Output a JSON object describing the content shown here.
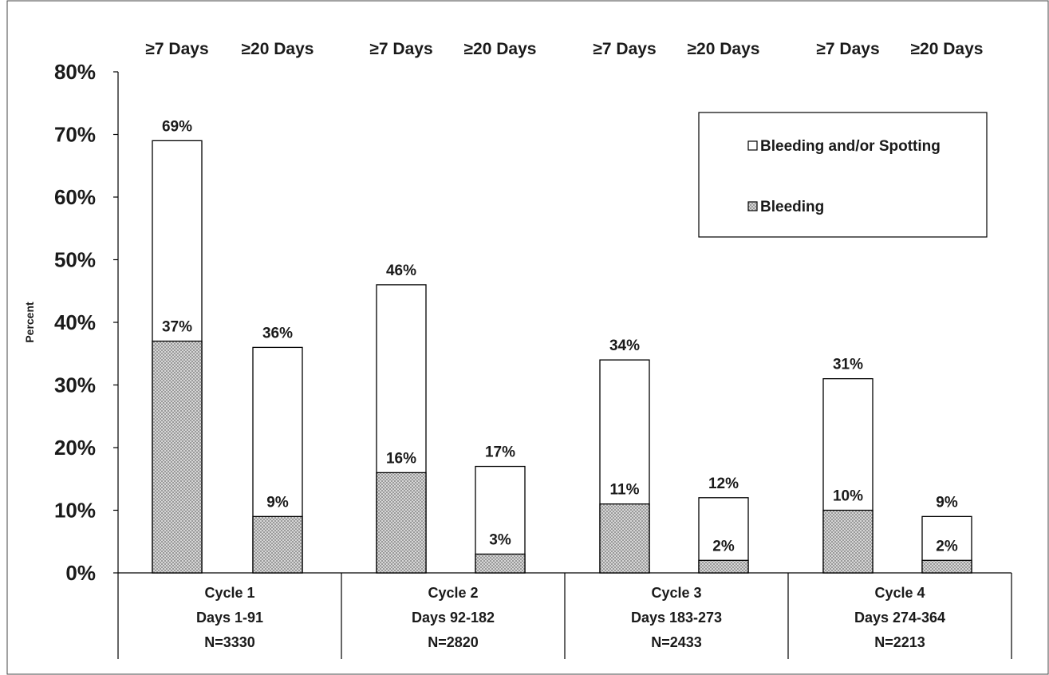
{
  "chart_data": {
    "type": "bar",
    "subtype": "overlapping-grouped-bar",
    "ylabel": "Percent",
    "ylim": [
      0,
      80
    ],
    "yticks": [
      {
        "value": 0,
        "label": "0%"
      },
      {
        "value": 10,
        "label": "10%"
      },
      {
        "value": 20,
        "label": "20%"
      },
      {
        "value": 30,
        "label": "30%"
      },
      {
        "value": 40,
        "label": "40%"
      },
      {
        "value": 50,
        "label": "50%"
      },
      {
        "value": 60,
        "label": "60%"
      },
      {
        "value": 70,
        "label": "70%"
      },
      {
        "value": 80,
        "label": "80%"
      }
    ],
    "bar_top_labels": [
      "≥7 Days",
      "≥20 Days",
      "≥7 Days",
      "≥20 Days",
      "≥7 Days",
      "≥20 Days",
      "≥7 Days",
      "≥20 Days"
    ],
    "groups": [
      {
        "lines": [
          "Cycle 1",
          "Days 1-91",
          "N=3330"
        ]
      },
      {
        "lines": [
          "Cycle 2",
          "Days 92-182",
          "N=2820"
        ]
      },
      {
        "lines": [
          "Cycle 3",
          "Days 183-273",
          "N=2433"
        ]
      },
      {
        "lines": [
          "Cycle 4",
          "Days 274-364",
          "N=2213"
        ]
      }
    ],
    "series": [
      {
        "name": "Bleeding and/or Spotting",
        "fill": "#ffffff",
        "values": [
          69,
          36,
          46,
          17,
          34,
          12,
          31,
          9
        ],
        "labels": [
          "69%",
          "36%",
          "46%",
          "17%",
          "34%",
          "12%",
          "31%",
          "9%"
        ]
      },
      {
        "name": "Bleeding",
        "fill": "#bdbdbd",
        "pattern": "crosshatch",
        "values": [
          37,
          9,
          16,
          3,
          11,
          2,
          10,
          2
        ],
        "labels": [
          "37%",
          "9%",
          "16%",
          "3%",
          "11%",
          "2%",
          "10%",
          "2%"
        ]
      }
    ],
    "grid": false,
    "legend_position": "top-right"
  },
  "colors": {
    "bar_outline": "#000000",
    "bleeding_fill": "#c8c8c8",
    "background": "#ffffff"
  }
}
